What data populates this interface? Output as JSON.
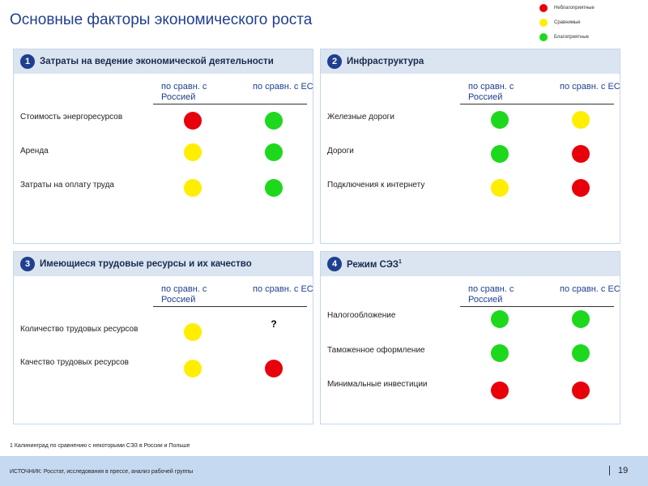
{
  "header": {
    "title": "Основные факторы экономического роста"
  },
  "legend": [
    {
      "label": "Неблагоприятные",
      "color": "#e8000b"
    },
    {
      "label": "Сравнимые",
      "color": "#ffee00"
    },
    {
      "label": "Благоприятные",
      "color": "#1ed81e"
    }
  ],
  "columns": [
    "по сравн. с Россией",
    "по сравн. с ЕС"
  ],
  "panels": [
    {
      "number": "1",
      "title": "Затраты на ведение экономической деятельности",
      "rows": [
        {
          "label": "Стоимость энергоресурсов",
          "ratings": [
            0,
            2
          ]
        },
        {
          "label": "Аренда",
          "ratings": [
            1,
            2
          ]
        },
        {
          "label": "Затраты на оплату труда",
          "ratings": [
            1,
            2
          ]
        }
      ]
    },
    {
      "number": "2",
      "title": "Инфраструктура",
      "rows": [
        {
          "label": "Железные дороги",
          "ratings": [
            2,
            1
          ]
        },
        {
          "label": "Дороги",
          "ratings": [
            2,
            0
          ]
        },
        {
          "label": "Подключения к интернету",
          "ratings": [
            1,
            0
          ]
        }
      ]
    },
    {
      "number": "3",
      "title": "Имеющиеся трудовые ресурсы и их качество",
      "rows": [
        {
          "label": "Количество трудовых ресурсов",
          "ratings": [
            1,
            "?"
          ]
        },
        {
          "label": "Качество трудовых ресурсов",
          "ratings": [
            1,
            0
          ]
        }
      ]
    },
    {
      "number": "4",
      "title": "Режим СЭЗ",
      "title_mark": "1",
      "rows": [
        {
          "label": "Налогообложение",
          "ratings": [
            2,
            2
          ]
        },
        {
          "label": "Таможенное оформление",
          "ratings": [
            2,
            2
          ]
        },
        {
          "label": "Минимальные инвестиции",
          "ratings": [
            0,
            0
          ]
        }
      ]
    }
  ],
  "footnote": "1 Калининград по сравнению с некоторыми СЭЗ в России и Польше",
  "footer": {
    "source": "ИСТОЧНИК: Росстат, исследования в прессе, анализ рабочей группы",
    "page": "19"
  }
}
